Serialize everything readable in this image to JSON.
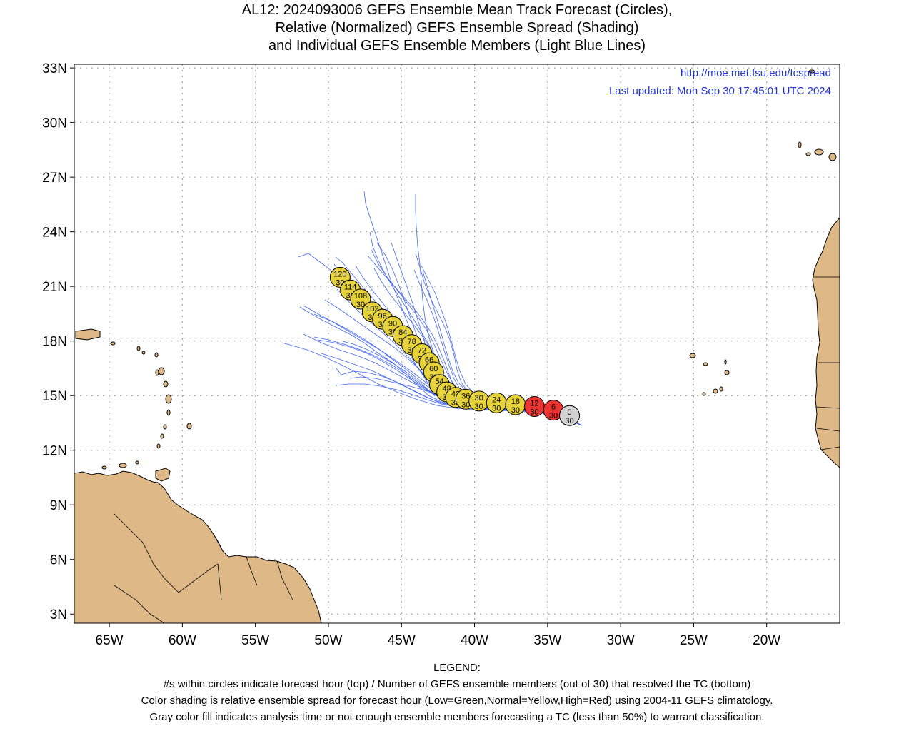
{
  "header": {
    "title_line1": "AL12: 2024093006 GEFS Ensemble Mean Track Forecast (Circles),",
    "title_line2": "Relative (Normalized) GEFS Ensemble Spread (Shading)",
    "title_line3": "and Individual GEFS Ensemble Members (Light Blue Lines)"
  },
  "map": {
    "url": "http://moe.met.fsu.edu/tcspread",
    "last_updated": "Last updated: Mon Sep 30 17:45:01 UTC 2024",
    "lon_range": [
      -67.4,
      -15.0
    ],
    "lat_range": [
      2.5,
      33.2
    ],
    "lon_ticks": [
      {
        "value": -65,
        "label": "65W"
      },
      {
        "value": -60,
        "label": "60W"
      },
      {
        "value": -55,
        "label": "55W"
      },
      {
        "value": -50,
        "label": "50W"
      },
      {
        "value": -45,
        "label": "45W"
      },
      {
        "value": -40,
        "label": "40W"
      },
      {
        "value": -35,
        "label": "35W"
      },
      {
        "value": -30,
        "label": "30W"
      },
      {
        "value": -25,
        "label": "25W"
      },
      {
        "value": -20,
        "label": "20W"
      }
    ],
    "lat_ticks": [
      {
        "value": 33,
        "label": "33N"
      },
      {
        "value": 30,
        "label": "30N"
      },
      {
        "value": 27,
        "label": "27N"
      },
      {
        "value": 24,
        "label": "24N"
      },
      {
        "value": 21,
        "label": "21N"
      },
      {
        "value": 18,
        "label": "18N"
      },
      {
        "value": 15,
        "label": "15N"
      },
      {
        "value": 12,
        "label": "12N"
      },
      {
        "value": 9,
        "label": "9N"
      },
      {
        "value": 6,
        "label": "6N"
      },
      {
        "value": 3,
        "label": "3N"
      }
    ],
    "colors": {
      "land": "#deb887",
      "member_tracks": "#4466ee",
      "low_spread": "#22cc22",
      "normal_spread": "#e6d23a",
      "high_spread": "#ee3333",
      "analysis": "#d3d3d3",
      "url_text": "#2233dd"
    },
    "track": [
      {
        "hour": "0",
        "members": "30",
        "lon": -33.5,
        "lat": 13.9,
        "spread": "analysis"
      },
      {
        "hour": "6",
        "members": "30",
        "lon": -34.6,
        "lat": 14.2,
        "spread": "high"
      },
      {
        "hour": "12",
        "members": "30",
        "lon": -35.9,
        "lat": 14.4,
        "spread": "high"
      },
      {
        "hour": "18",
        "members": "30",
        "lon": -37.2,
        "lat": 14.5,
        "spread": "normal"
      },
      {
        "hour": "24",
        "members": "30",
        "lon": -38.5,
        "lat": 14.6,
        "spread": "normal"
      },
      {
        "hour": "30",
        "members": "30",
        "lon": -39.7,
        "lat": 14.7,
        "spread": "normal"
      },
      {
        "hour": "36",
        "members": "30",
        "lon": -40.6,
        "lat": 14.8,
        "spread": "normal"
      },
      {
        "hour": "42",
        "members": "30",
        "lon": -41.3,
        "lat": 14.9,
        "spread": "normal"
      },
      {
        "hour": "48",
        "members": "30",
        "lon": -41.9,
        "lat": 15.2,
        "spread": "normal"
      },
      {
        "hour": "54",
        "members": "30",
        "lon": -42.4,
        "lat": 15.6,
        "spread": "normal"
      },
      {
        "hour": "60",
        "members": "30",
        "lon": -42.8,
        "lat": 16.3,
        "spread": "normal"
      },
      {
        "hour": "66",
        "members": "30",
        "lon": -43.1,
        "lat": 16.8,
        "spread": "normal"
      },
      {
        "hour": "72",
        "members": "30",
        "lon": -43.6,
        "lat": 17.3,
        "spread": "normal"
      },
      {
        "hour": "78",
        "members": "30",
        "lon": -44.3,
        "lat": 17.8,
        "spread": "normal"
      },
      {
        "hour": "84",
        "members": "30",
        "lon": -44.9,
        "lat": 18.3,
        "spread": "normal"
      },
      {
        "hour": "90",
        "members": "30",
        "lon": -45.6,
        "lat": 18.8,
        "spread": "normal"
      },
      {
        "hour": "96",
        "members": "30",
        "lon": -46.3,
        "lat": 19.2,
        "spread": "normal"
      },
      {
        "hour": "102",
        "members": "30",
        "lon": -47.0,
        "lat": 19.6,
        "spread": "normal"
      },
      {
        "hour": "108",
        "members": "30",
        "lon": -47.8,
        "lat": 20.3,
        "spread": "normal"
      },
      {
        "hour": "114",
        "members": "30",
        "lon": -48.5,
        "lat": 20.8,
        "spread": "normal"
      },
      {
        "hour": "120",
        "members": "30",
        "lon": -49.2,
        "lat": 21.5,
        "spread": "normal"
      }
    ]
  },
  "legend": {
    "heading": "LEGEND:",
    "line1": "#s within circles indicate forecast hour (top) / Number of GEFS ensemble members (out of 30) that resolved the TC (bottom)",
    "line2": "Color shading is relative ensemble spread for forecast hour (Low=Green,Normal=Yellow,High=Red) using 2004-11 GEFS climatology.",
    "line3": "Gray color fill indicates analysis time or not enough ensemble members forecasting a TC (less than 50%) to warrant classification."
  }
}
